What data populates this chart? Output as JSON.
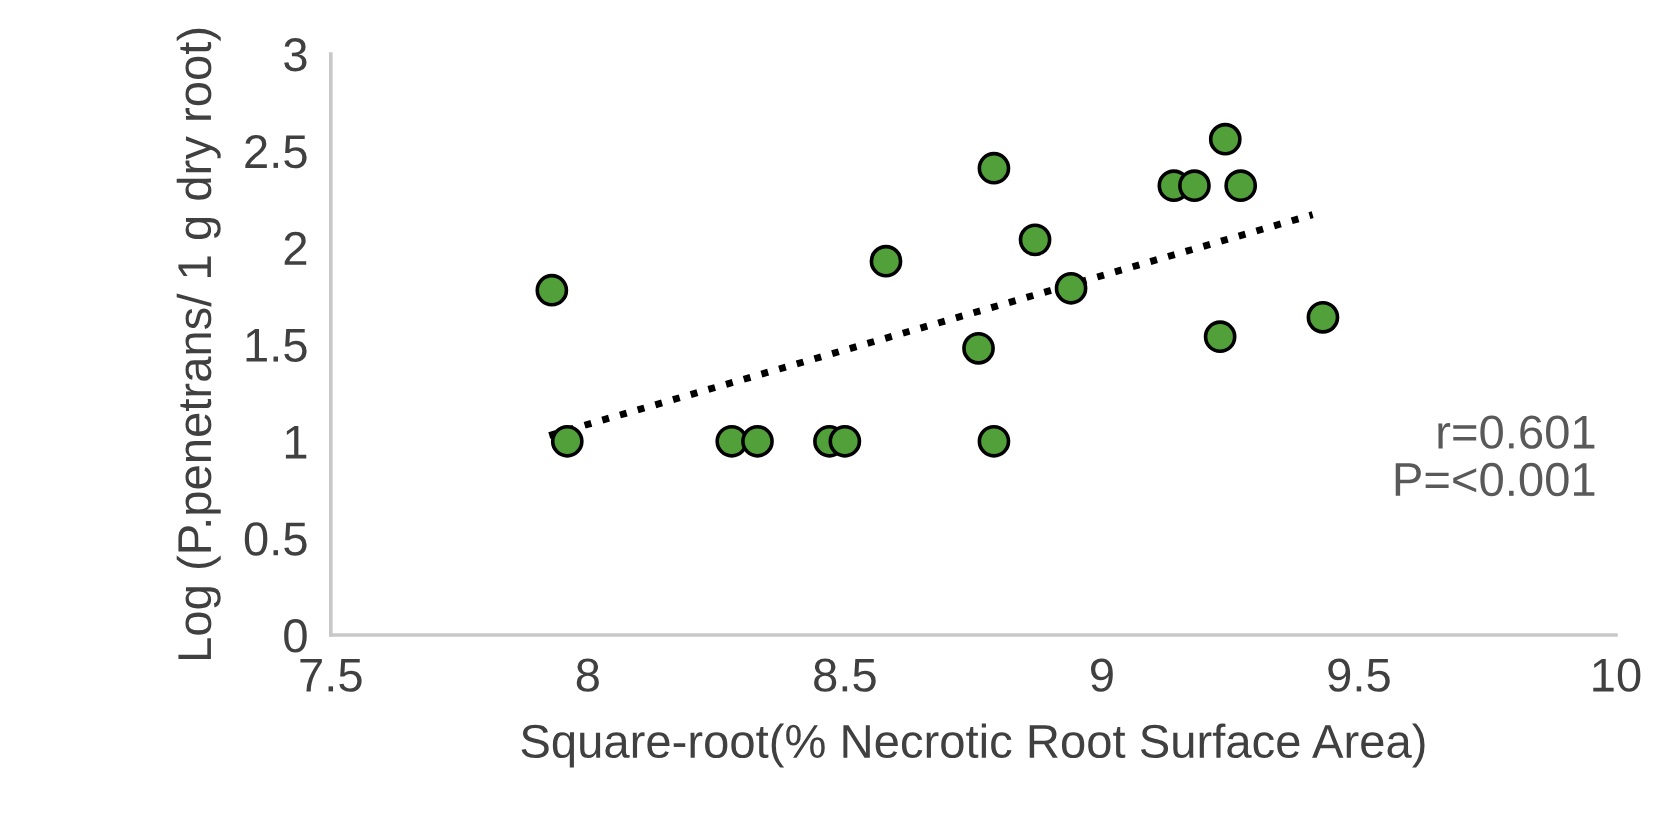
{
  "chart_data": {
    "type": "scatter",
    "xlabel": "Square-root(% Necrotic Root Surface Area)",
    "ylabel": "Log (P.penetrans/ 1 g dry root)",
    "annotations": [
      "r=0.601",
      "P=<0.001"
    ],
    "xlim": [
      7.5,
      10
    ],
    "xticks": [
      7.5,
      8,
      8.5,
      9,
      9.5,
      10
    ],
    "ylim": [
      0,
      3
    ],
    "yticks": [
      0,
      0.5,
      1,
      1.5,
      2,
      2.5,
      3
    ],
    "grid": false,
    "legend": false,
    "series": [
      {
        "color": "#52a03a",
        "marker": "circle",
        "x": [
          7.93,
          7.96,
          8.28,
          8.33,
          8.47,
          8.5,
          8.58,
          8.76,
          8.79,
          8.79,
          8.87,
          8.94,
          9.14,
          9.18,
          9.24,
          9.27,
          9.23,
          9.43
        ],
        "values": [
          1.78,
          1.0,
          1.0,
          1.0,
          1.0,
          1.0,
          1.93,
          1.48,
          2.41,
          1.0,
          2.04,
          1.79,
          2.32,
          2.32,
          2.56,
          2.32,
          1.54,
          1.64
        ]
      },
      {
        "type": "line",
        "color": "#000000",
        "line_style": "dotted",
        "marker": "none",
        "x": [
          7.925,
          9.41
        ],
        "values": [
          1.03,
          2.17
        ]
      }
    ]
  }
}
